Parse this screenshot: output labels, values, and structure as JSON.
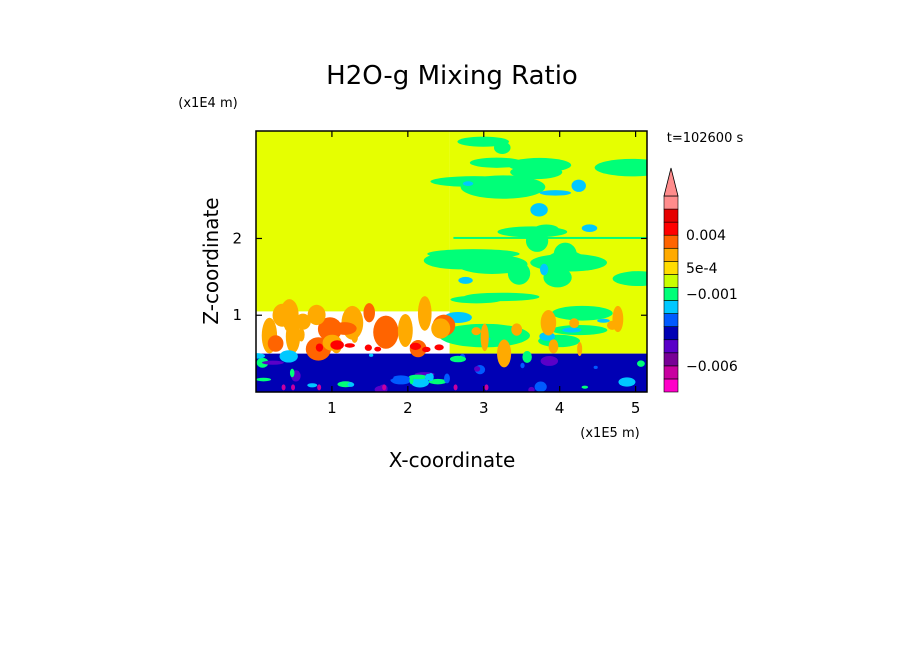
{
  "chart_data": {
    "type": "heatmap",
    "title": "H2O-g Mixing Ratio",
    "xlabel": "X-coordinate",
    "ylabel": "Z-coordinate",
    "x_multiplier": "(x1E5 m)",
    "y_multiplier": "(x1E4 m)",
    "time_label": "t=102600 s",
    "xlim": [
      0,
      5.15
    ],
    "ylim": [
      0,
      3.4
    ],
    "x_ticks": [
      "1",
      "2",
      "3",
      "4",
      "5"
    ],
    "y_ticks": [
      "1",
      "2"
    ],
    "x_tick_values": [
      1,
      2,
      3,
      4,
      5
    ],
    "y_tick_values": [
      1,
      2
    ],
    "colorbar": {
      "levels": [
        {
          "color": "#ff00c8"
        },
        {
          "color": "#c800a0"
        },
        {
          "color": "#780096"
        },
        {
          "color": "#5a00c8"
        },
        {
          "color": "#0000b4"
        },
        {
          "color": "#005aff"
        },
        {
          "color": "#00c8ff"
        },
        {
          "color": "#00ff78"
        },
        {
          "color": "#c8ff00"
        },
        {
          "color": "#ffdc00"
        },
        {
          "color": "#ffaa00"
        },
        {
          "color": "#ff6400"
        },
        {
          "color": "#ff0000"
        },
        {
          "color": "#e60000"
        },
        {
          "color": "#ff8c8c"
        }
      ],
      "labels": [
        "0.004",
        "5e-4",
        "−0.001",
        "−0.006"
      ],
      "label_level_positions": [
        12,
        9.5,
        7.5,
        2
      ]
    },
    "regions": [
      {
        "name": "upper-left",
        "x": [
          0,
          2.55
        ],
        "z": [
          1.05,
          3.4
        ],
        "color": "#e6ff00"
      },
      {
        "name": "upper-right",
        "x": [
          2.55,
          5.15
        ],
        "z": [
          0.5,
          3.4
        ],
        "color": "#e6ff00"
      },
      {
        "name": "lower-band",
        "x": [
          0,
          5.15
        ],
        "z": [
          0,
          0.5
        ],
        "color": "#0000b4"
      }
    ]
  }
}
